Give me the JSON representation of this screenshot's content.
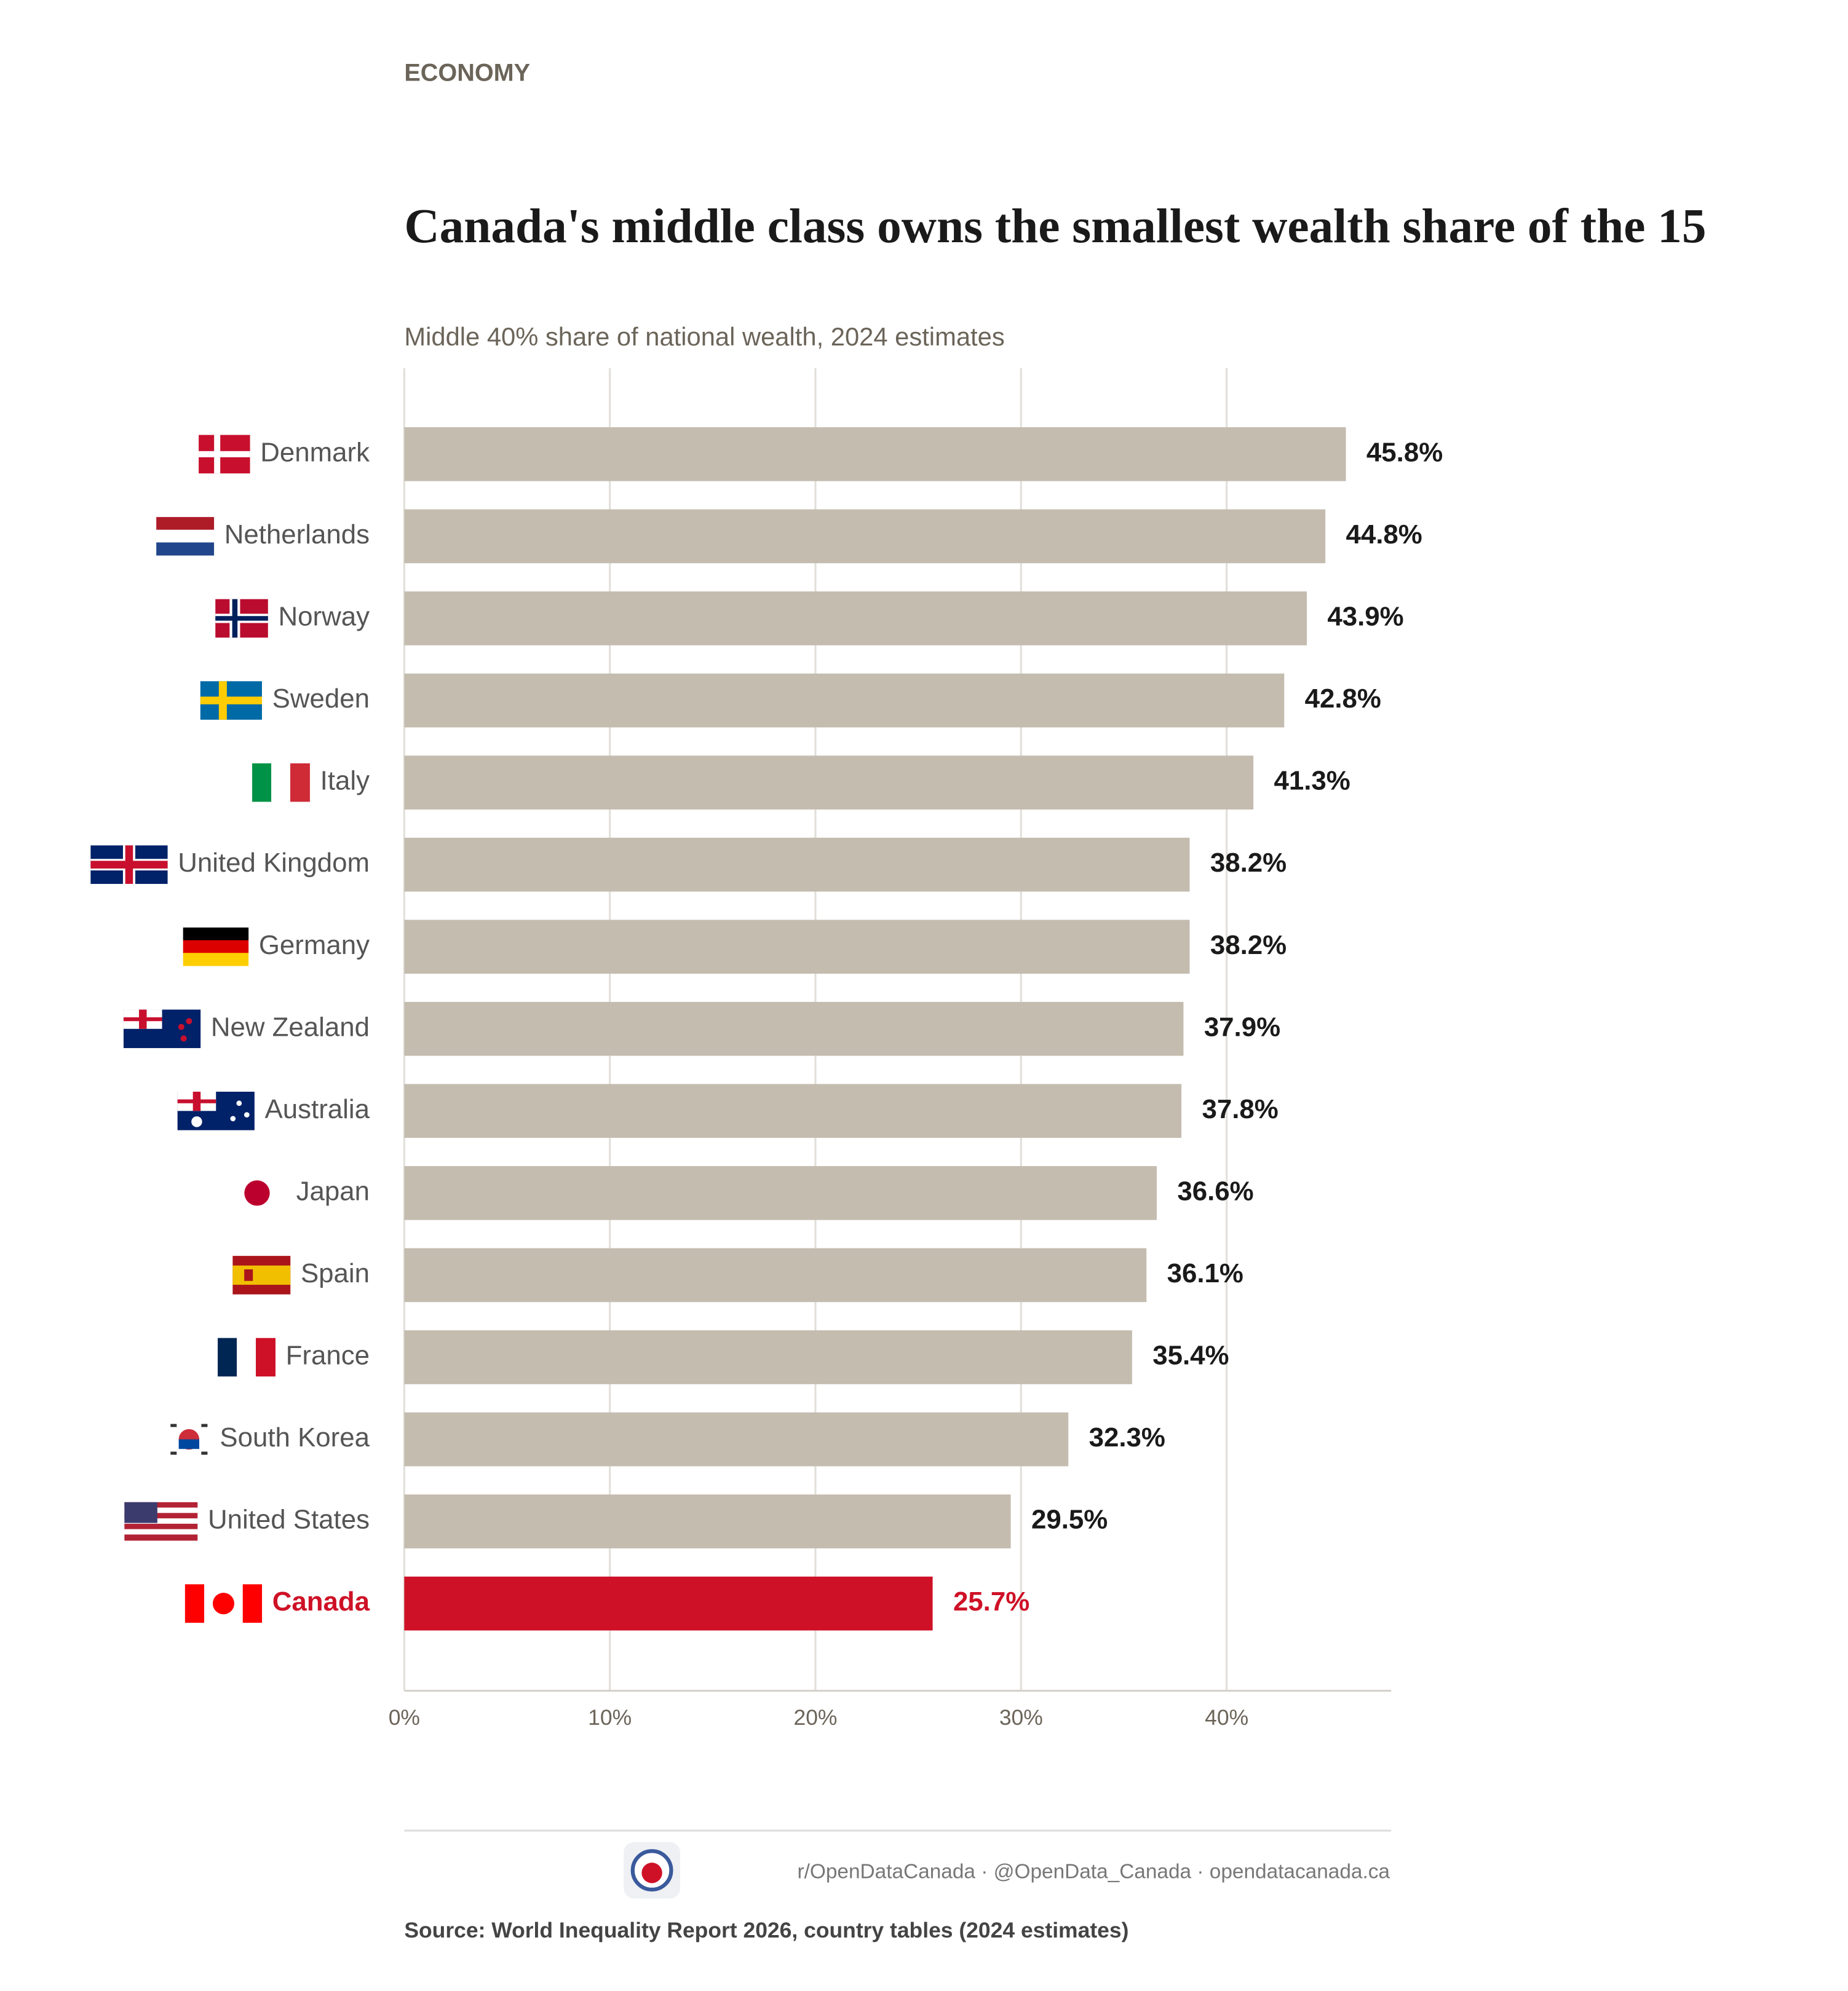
{
  "header": {
    "section": "ECONOMY"
  },
  "chart_data": {
    "type": "bar",
    "orientation": "horizontal",
    "title": "Canada's middle class owns the smallest wealth share of the 15",
    "subtitle": "Middle 40% share of national wealth, 2024 estimates",
    "categories": [
      "Denmark",
      "Netherlands",
      "Norway",
      "Sweden",
      "Italy",
      "United Kingdom",
      "Germany",
      "New Zealand",
      "Australia",
      "Japan",
      "Spain",
      "France",
      "South Korea",
      "United States",
      "Canada"
    ],
    "values": [
      45.8,
      44.8,
      43.9,
      42.8,
      41.3,
      38.2,
      38.2,
      37.9,
      37.8,
      36.6,
      36.1,
      35.4,
      32.3,
      29.5,
      25.7
    ],
    "value_labels": [
      "45.8%",
      "44.8%",
      "43.9%",
      "42.8%",
      "41.3%",
      "38.2%",
      "38.2%",
      "37.9%",
      "37.8%",
      "36.6%",
      "36.1%",
      "35.4%",
      "32.3%",
      "29.5%",
      "25.7%"
    ],
    "colors": [
      "#c4bcaf",
      "#c4bcaf",
      "#c4bcaf",
      "#c4bcaf",
      "#c4bcaf",
      "#c4bcaf",
      "#c4bcaf",
      "#c4bcaf",
      "#c4bcaf",
      "#c4bcaf",
      "#c4bcaf",
      "#c4bcaf",
      "#c4bcaf",
      "#c4bcaf",
      "#ce1126"
    ],
    "xlim": [
      0,
      48
    ],
    "xticks": [
      {
        "value": 0,
        "label": "0%"
      },
      {
        "value": 10,
        "label": "10%"
      },
      {
        "value": 20,
        "label": "20%"
      },
      {
        "value": 30,
        "label": "30%"
      },
      {
        "value": 40,
        "label": "40%"
      }
    ],
    "grid": true
  },
  "footer": {
    "links": "r/OpenDataCanada  ·  @OpenData_Canada  ·  opendatacanada.ca",
    "source": "Source: World Inequality Report 2026, country tables (2024 estimates)"
  }
}
